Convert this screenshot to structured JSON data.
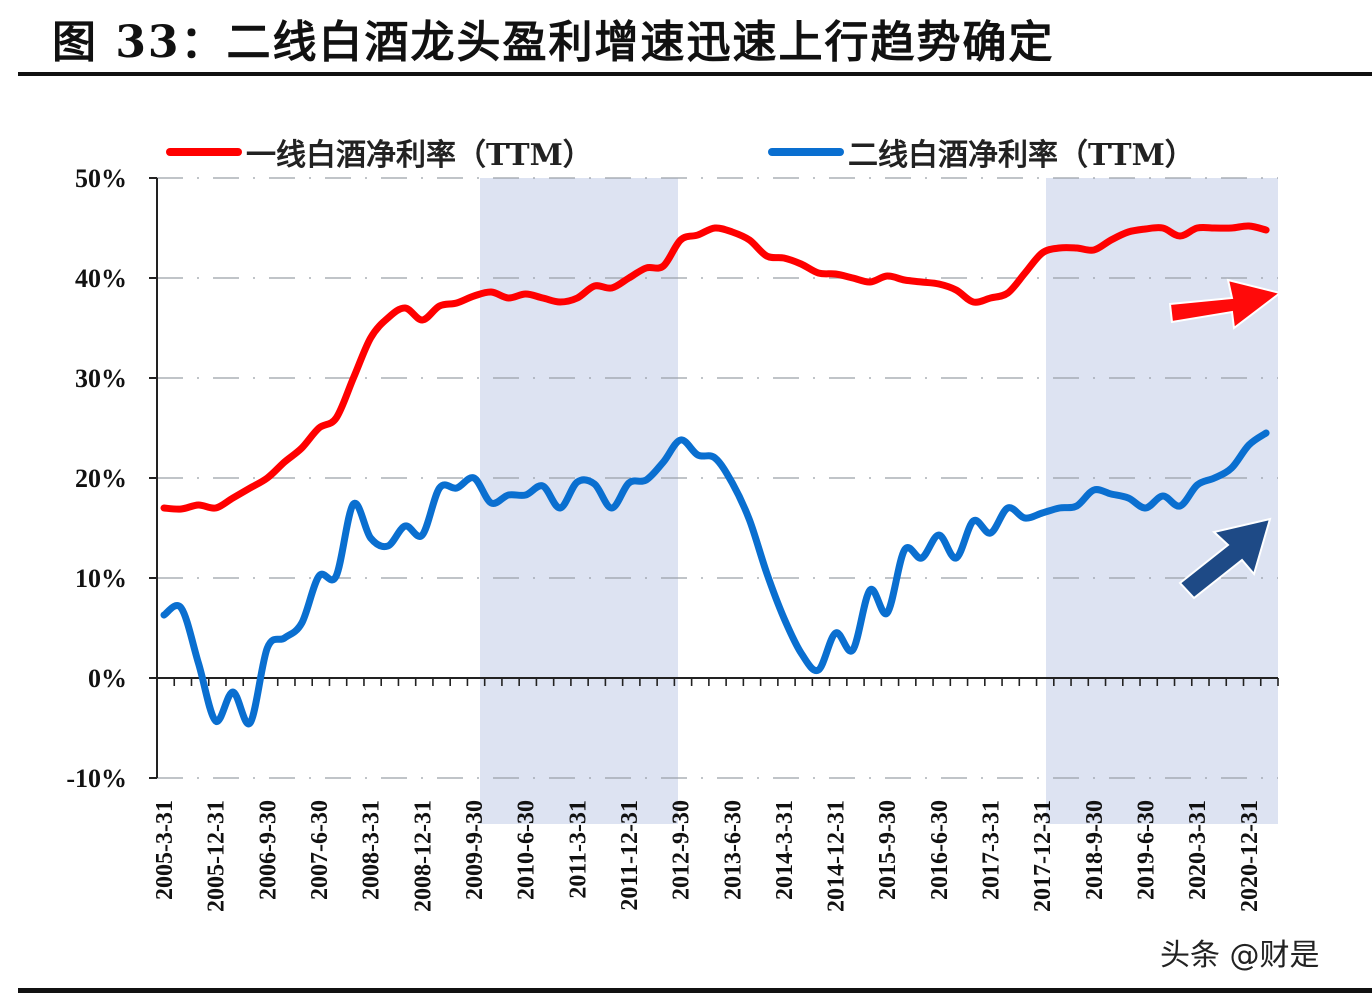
{
  "figure": {
    "title": "图 33：二线白酒龙头盈利增速迅速上行趋势确定",
    "watermark": "头条 @财是"
  },
  "colors": {
    "series1": "#ff0000",
    "series2": "#0a6fd0",
    "shade": "#dde3f2",
    "arrow_red": "#ff0a0a",
    "arrow_blue": "#1e4a86",
    "grid": "#9aa0a8"
  },
  "chart_data": {
    "type": "line",
    "title": "二线白酒龙头盈利增速迅速上行趋势确定",
    "xlabel": "",
    "ylabel": "",
    "ylim": [
      -0.1,
      0.5
    ],
    "yticks": [
      "50%",
      "40%",
      "30%",
      "20%",
      "10%",
      "0%",
      "-10%"
    ],
    "grid": "horizontal dash-dot",
    "legend_position": "top",
    "x_tick_labels": [
      "2005-3-31",
      "2005-12-31",
      "2006-9-30",
      "2007-6-30",
      "2008-3-31",
      "2008-12-31",
      "2009-9-30",
      "2010-6-30",
      "2011-3-31",
      "2011-12-31",
      "2012-9-30",
      "2013-6-30",
      "2014-3-31",
      "2014-12-31",
      "2015-9-30",
      "2016-6-30",
      "2017-3-31",
      "2017-12-31",
      "2018-9-30",
      "2019-6-30",
      "2020-3-31",
      "2020-12-31"
    ],
    "x": [
      "2005Q1",
      "2005Q2",
      "2005Q3",
      "2005Q4",
      "2006Q1",
      "2006Q2",
      "2006Q3",
      "2006Q4",
      "2007Q1",
      "2007Q2",
      "2007Q3",
      "2007Q4",
      "2008Q1",
      "2008Q2",
      "2008Q3",
      "2008Q4",
      "2009Q1",
      "2009Q2",
      "2009Q3",
      "2009Q4",
      "2010Q1",
      "2010Q2",
      "2010Q3",
      "2010Q4",
      "2011Q1",
      "2011Q2",
      "2011Q3",
      "2011Q4",
      "2012Q1",
      "2012Q2",
      "2012Q3",
      "2012Q4",
      "2013Q1",
      "2013Q2",
      "2013Q3",
      "2013Q4",
      "2014Q1",
      "2014Q2",
      "2014Q3",
      "2014Q4",
      "2015Q1",
      "2015Q2",
      "2015Q3",
      "2015Q4",
      "2016Q1",
      "2016Q2",
      "2016Q3",
      "2016Q4",
      "2017Q1",
      "2017Q2",
      "2017Q3",
      "2017Q4",
      "2018Q1",
      "2018Q2",
      "2018Q3",
      "2018Q4",
      "2019Q1",
      "2019Q2",
      "2019Q3",
      "2019Q4",
      "2020Q1",
      "2020Q2",
      "2020Q3",
      "2020Q4",
      "2021Q1"
    ],
    "series": [
      {
        "name": "一线白酒净利率（TTM）",
        "color": "#ff0000",
        "values": [
          17.0,
          16.9,
          17.3,
          17.0,
          18.0,
          19.0,
          20.0,
          21.6,
          23.0,
          25.0,
          26.0,
          30.0,
          34.0,
          36.0,
          37.0,
          35.8,
          37.2,
          37.5,
          38.2,
          38.6,
          38.0,
          38.4,
          38.0,
          37.6,
          38.0,
          39.2,
          39.0,
          40.0,
          41.0,
          41.2,
          43.8,
          44.3,
          45.0,
          44.6,
          43.8,
          42.2,
          42.0,
          41.4,
          40.5,
          40.4,
          40.0,
          39.6,
          40.2,
          39.8,
          39.6,
          39.4,
          38.8,
          37.6,
          38.0,
          38.5,
          40.5,
          42.5,
          43.0,
          43.0,
          42.8,
          43.8,
          44.6,
          44.9,
          45.0,
          44.2,
          45.0,
          45.0,
          45.0,
          45.2,
          44.8
        ]
      },
      {
        "name": "二线白酒净利率（TTM）",
        "color": "#0a6fd0",
        "values": [
          6.3,
          7.0,
          1.5,
          -4.3,
          -1.4,
          -4.5,
          3.0,
          4.0,
          5.5,
          10.2,
          10.2,
          17.4,
          14.0,
          13.2,
          15.2,
          14.3,
          19.0,
          19.0,
          20.0,
          17.5,
          18.3,
          18.3,
          19.2,
          17.0,
          19.6,
          19.4,
          17.0,
          19.5,
          19.8,
          21.6,
          23.8,
          22.3,
          22.0,
          19.5,
          15.8,
          10.5,
          6.0,
          2.5,
          0.8,
          4.5,
          2.8,
          8.8,
          6.5,
          12.8,
          12.0,
          14.3,
          12.0,
          15.7,
          14.5,
          17.0,
          16.0,
          16.5,
          17.0,
          17.2,
          18.8,
          18.4,
          18.0,
          17.0,
          18.2,
          17.2,
          19.3,
          20.0,
          21.0,
          23.3,
          24.5
        ]
      }
    ],
    "shaded_regions": [
      {
        "from": "2009-9-30",
        "to": "2012-9-30"
      },
      {
        "from": "2017-12-31",
        "to": "2021-3-31"
      }
    ],
    "annotations": [
      {
        "type": "arrow",
        "color": "red",
        "direction": "right/up-slight",
        "meaning": "一线白酒净利率持续上行"
      },
      {
        "type": "arrow",
        "color": "dark-blue",
        "direction": "up-right",
        "meaning": "二线白酒净利率上行"
      }
    ]
  },
  "legend": {
    "items": [
      {
        "label": "一线白酒净利率（TTM）",
        "color": "#ff0000"
      },
      {
        "label": "二线白酒净利率（TTM）",
        "color": "#0a6fd0"
      }
    ]
  }
}
